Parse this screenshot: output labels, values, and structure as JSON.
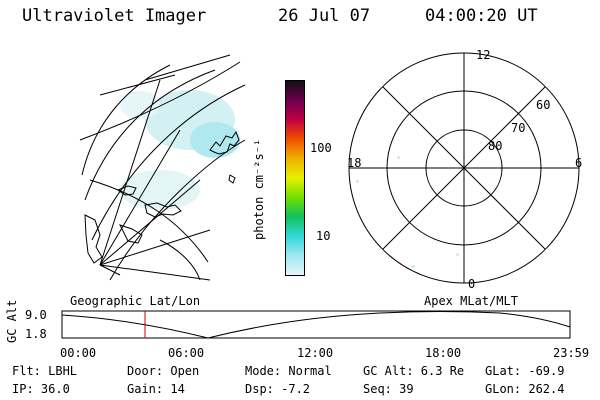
{
  "header": {
    "title": "Ultraviolet Imager",
    "date": "26 Jul 07",
    "time": "04:00:20 UT"
  },
  "colorbar": {
    "unit_label": "photon cm⁻²s⁻¹",
    "ticks": [
      "100",
      "10"
    ],
    "colors": [
      "#101010",
      "#6a0050",
      "#c00040",
      "#f05000",
      "#f0b000",
      "#e8f000",
      "#70e000",
      "#10c060",
      "#30d8d8",
      "#a0e8f0",
      "#e8f4f8"
    ]
  },
  "polar_plot": {
    "mlt_labels": {
      "top": "12",
      "left": "18",
      "right": "6",
      "bottom": "0"
    },
    "lat_labels": [
      "60",
      "70",
      "80"
    ]
  },
  "timeline": {
    "left_caption": "Geographic Lat/Lon",
    "right_caption": "Apex MLat/MLT",
    "axis_title": "GC Alt",
    "y_ticks": [
      "9.0",
      "1.8"
    ],
    "x_ticks": [
      "00:00",
      "06:00",
      "12:00",
      "18:00",
      "23:59"
    ],
    "current_marker_color": "#cc0000"
  },
  "info": {
    "row1": {
      "flt": "Flt: LBHL",
      "door": "Door: Open",
      "mode": "Mode: Normal",
      "gc_alt": "GC Alt: 6.3 Re",
      "glat": "GLat: -69.9"
    },
    "row2": {
      "ip": "IP: 36.0",
      "gain": "Gain: 14",
      "dsp": "Dsp:   -7.2",
      "seq": "Seq: 39",
      "glon": "GLon: 262.4"
    }
  }
}
